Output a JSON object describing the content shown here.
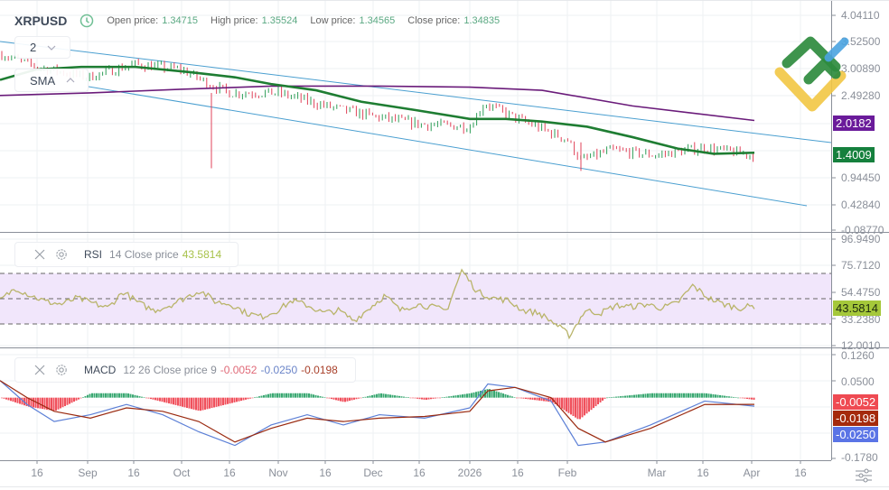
{
  "header": {
    "symbol": "XRPUSD",
    "open_label": "Open price:",
    "open_value": "1.34715",
    "high_label": "High price:",
    "high_value": "1.35524",
    "low_label": "Low price:",
    "low_value": "1.34565",
    "close_label": "Close price:",
    "close_value": "1.34835"
  },
  "controls": {
    "timeframe_value": "2",
    "indicator_select": "SMA"
  },
  "rsi_legend": {
    "name": "RSI",
    "params": "14 Close price",
    "value": "43.5814"
  },
  "macd_legend": {
    "name": "MACD",
    "params": "12 26 Close price 9",
    "v1": "-0.0052",
    "v2": "-0.0250",
    "v3": "-0.0198"
  },
  "price_axis": {
    "ticks": [
      "4.04110",
      "3.52500",
      "3.00890",
      "2.49280",
      "0.94450",
      "0.42840",
      "-0.08770"
    ],
    "tags": {
      "sma_slow": "2.0182",
      "sma_fast": "1.4009"
    }
  },
  "rsi_axis": {
    "ticks": [
      "96.9490",
      "75.7120",
      "54.4750",
      "33.2380",
      "12.0010"
    ],
    "tag": "43.5814"
  },
  "macd_axis": {
    "ticks": [
      "0.1260",
      "0.0500",
      "-0.1780"
    ],
    "tags": {
      "histogram": "-0.0052",
      "signal": "-0.0198",
      "macd": "-0.0250"
    }
  },
  "time_axis": {
    "labels": [
      "16",
      "Sep",
      "16",
      "Oct",
      "16",
      "Nov",
      "16",
      "Dec",
      "16",
      "2026",
      "16",
      "Feb",
      "Mar",
      "16",
      "Apr",
      "16"
    ]
  },
  "colors": {
    "sma_fast": "#1e7d32",
    "sma_slow": "#6a1b7a",
    "channel": "#4a9fd0",
    "up": "#2e9e58",
    "down": "#e0435a",
    "rsi": "#b9b46a",
    "rsi_band": "#f1e6fb",
    "hist_up": "#3aa872",
    "hist_down": "#f0505c",
    "macd": "#5b7fd6",
    "signal": "#9a2a10",
    "tag_sma_slow": "#6a1b9a",
    "tag_sma_fast": "#15803d",
    "tag_rsi": "#a5c83a",
    "tag_hist": "#ef4a52",
    "tag_signal": "#a52a0c",
    "tag_macd": "#5a74e6"
  },
  "chart_data": [
    {
      "type": "candlestick",
      "title": "XRPUSD",
      "x_labels": [
        "16",
        "Sep",
        "16",
        "Oct",
        "16",
        "Nov",
        "16",
        "Dec",
        "16",
        "2026",
        "16",
        "Feb",
        "Mar",
        "16",
        "Apr",
        "16"
      ],
      "ylim": [
        -0.0877,
        4.0411
      ],
      "ohlc_last": {
        "open": 1.34715,
        "high": 1.35524,
        "low": 1.34565,
        "close": 1.34835
      },
      "series": [
        {
          "name": "Close (approx)",
          "x": [
            "Aug 6",
            "Aug 16",
            "Sep 1",
            "Sep 16",
            "Oct 1",
            "Oct 10",
            "Oct 16",
            "Nov 1",
            "Nov 16",
            "Dec 1",
            "Dec 16",
            "Jan 1",
            "Jan 5",
            "Jan 16",
            "Feb 1",
            "Feb 5",
            "Feb 16",
            "Mar 1",
            "Mar 16",
            "Apr 1"
          ],
          "values": [
            3.3,
            3.05,
            2.85,
            3.1,
            3.0,
            2.7,
            2.55,
            2.55,
            2.3,
            2.1,
            1.95,
            1.9,
            2.35,
            2.05,
            1.65,
            1.25,
            1.45,
            1.35,
            1.5,
            1.35
          ]
        },
        {
          "name": "SMA fast",
          "values_last": 1.4009
        },
        {
          "name": "SMA slow",
          "values_last": 2.0182
        }
      ],
      "annotations": [
        "descending channel (upper and lower trend lines)"
      ]
    },
    {
      "type": "line",
      "title": "RSI 14 Close price",
      "ylim": [
        12.001,
        96.949
      ],
      "levels": [
        70,
        50,
        30
      ],
      "last": 43.5814,
      "values": [
        48,
        58,
        52,
        47,
        45,
        50,
        46,
        42,
        55,
        46,
        40,
        44,
        50,
        56,
        47,
        45,
        38,
        35,
        40,
        48,
        44,
        38,
        40,
        32,
        42,
        52,
        40,
        45,
        43,
        40,
        72,
        55,
        50,
        48,
        40,
        38,
        30,
        20,
        40,
        38,
        44,
        43,
        45,
        42,
        46,
        60,
        50,
        45,
        42,
        43.58
      ]
    },
    {
      "type": "bar+line",
      "title": "MACD 12 26 Close price 9",
      "ylim": [
        -0.178,
        0.126
      ],
      "last": {
        "histogram": -0.0052,
        "macd": -0.025,
        "signal": -0.0198
      }
    }
  ]
}
